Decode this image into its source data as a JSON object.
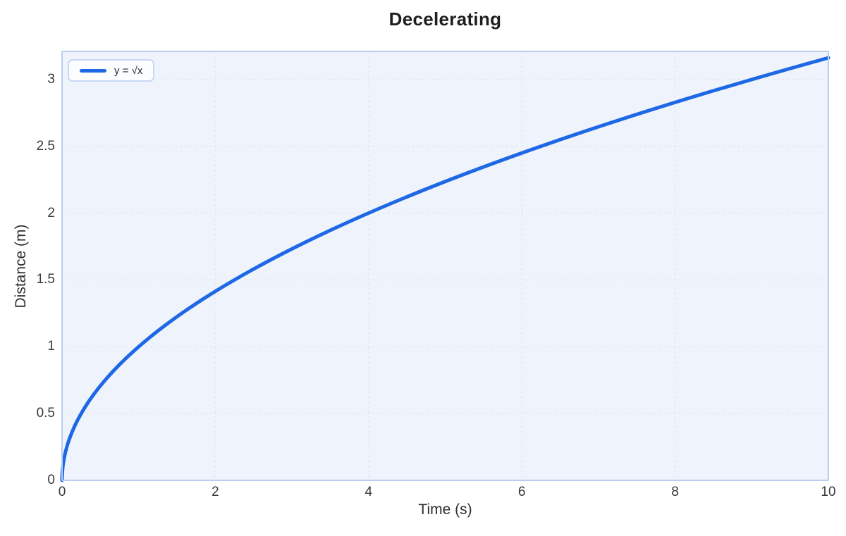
{
  "chart_data": {
    "type": "line",
    "title": "Decelerating",
    "xlabel": "Time (s)",
    "ylabel": "Distance (m)",
    "xlim": [
      0,
      10
    ],
    "ylim": [
      0,
      3.21
    ],
    "x_ticks": [
      0,
      2,
      4,
      6,
      8,
      10
    ],
    "y_ticks": [
      0,
      0.5,
      1,
      1.5,
      2,
      2.5,
      3
    ],
    "grid": true,
    "grid_style": "dotted",
    "legend_position": "top-left",
    "series": [
      {
        "name": "y = √x",
        "fn": "sqrt",
        "color": "#1e68e6",
        "line_width": 5,
        "points_sample": [
          [
            0,
            0
          ],
          [
            0.5,
            0.707
          ],
          [
            1,
            1
          ],
          [
            1.5,
            1.225
          ],
          [
            2,
            1.414
          ],
          [
            2.5,
            1.581
          ],
          [
            3,
            1.732
          ],
          [
            3.5,
            1.871
          ],
          [
            4,
            2
          ],
          [
            4.5,
            2.121
          ],
          [
            5,
            2.236
          ],
          [
            5.5,
            2.345
          ],
          [
            6,
            2.449
          ],
          [
            6.5,
            2.55
          ],
          [
            7,
            2.646
          ],
          [
            7.5,
            2.739
          ],
          [
            8,
            2.828
          ],
          [
            8.5,
            2.915
          ],
          [
            9,
            3
          ],
          [
            9.5,
            3.082
          ],
          [
            10,
            3.162
          ]
        ]
      }
    ]
  },
  "colors": {
    "accent": "#1e68e6",
    "plot_bg": "#eff3fb",
    "plot_border": "#b9cdf1",
    "grid": "#e2e7f2",
    "legend_border": "#c9d8f4"
  }
}
